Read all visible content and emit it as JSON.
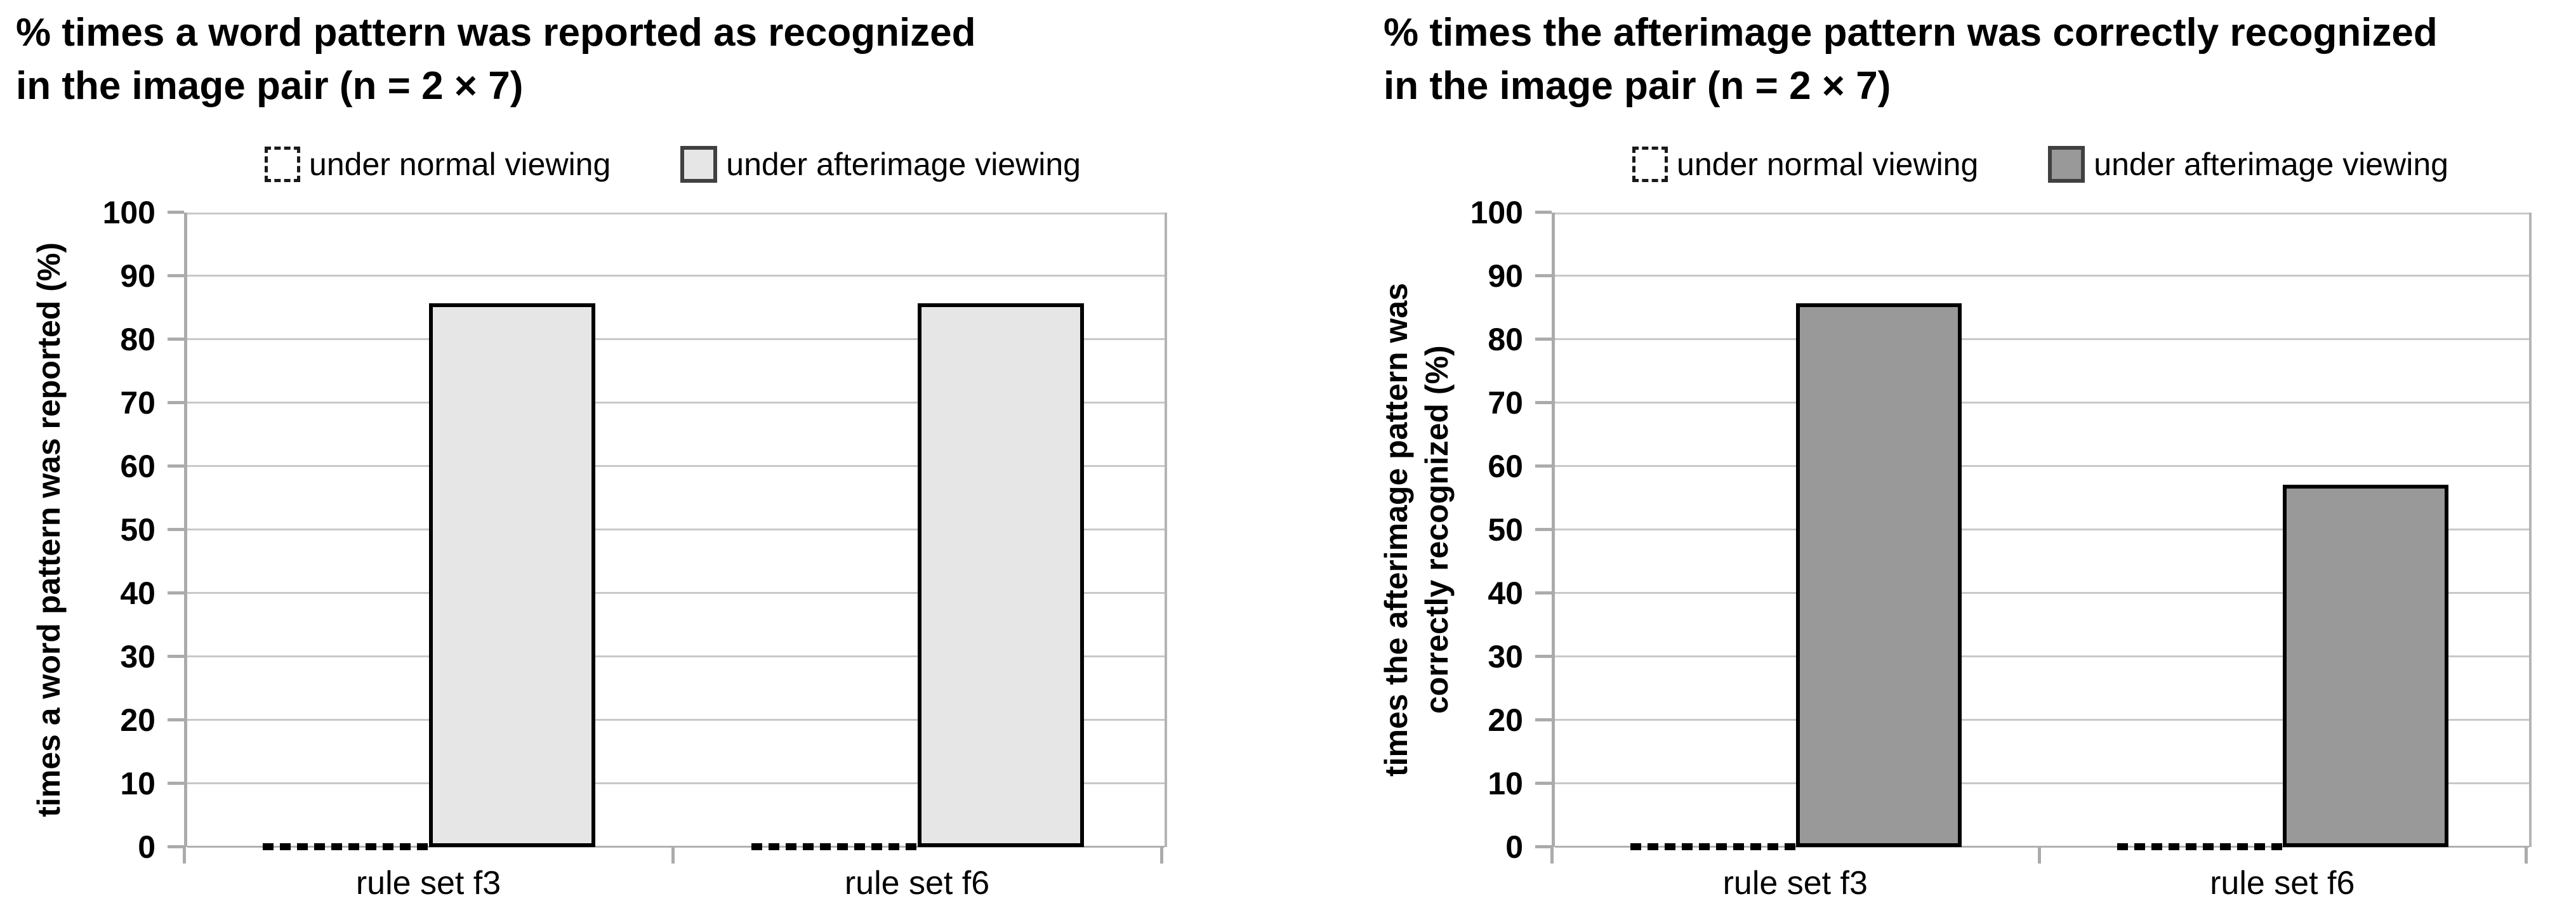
{
  "page": {
    "background": "#ffffff"
  },
  "colors": {
    "gridline": "#c8c8c8",
    "axis": "#ababab",
    "bar_border": "#000000",
    "legend_swatch_border": "#404040",
    "text": "#000000",
    "left_bar_fill": "#e6e6e6",
    "right_bar_fill": "#999999"
  },
  "chart_data": [
    {
      "type": "bar",
      "title": "% times a word pattern was reported as recognized\nin the image pair (n = 2 × 7)",
      "ylabel": "times a word pattern was reported (%)",
      "xlabel": "",
      "categories": [
        "rule set f3",
        "rule set f6"
      ],
      "series": [
        {
          "name": "under normal viewing",
          "values": [
            0,
            0
          ],
          "fill": "#ffffff",
          "style": "dashed-outline"
        },
        {
          "name": "under afterimage viewing",
          "values": [
            85.7,
            85.7
          ],
          "fill": "#e6e6e6",
          "style": "solid"
        }
      ],
      "ylim": [
        0,
        100
      ],
      "yticks": [
        0,
        10,
        20,
        30,
        40,
        50,
        60,
        70,
        80,
        90,
        100
      ],
      "grid": true,
      "legend_position": "top-center"
    },
    {
      "type": "bar",
      "title": "% times the afterimage pattern was correctly recognized\nin the image pair (n = 2 × 7)",
      "ylabel": "times the afterimage pattern was\ncorrectly recognized (%)",
      "xlabel": "",
      "categories": [
        "rule set f3",
        "rule set f6"
      ],
      "series": [
        {
          "name": "under normal viewing",
          "values": [
            0,
            0
          ],
          "fill": "#ffffff",
          "style": "dashed-outline"
        },
        {
          "name": "under afterimage viewing",
          "values": [
            85.7,
            57.1
          ],
          "fill": "#999999",
          "style": "solid"
        }
      ],
      "ylim": [
        0,
        100
      ],
      "yticks": [
        0,
        10,
        20,
        30,
        40,
        50,
        60,
        70,
        80,
        90,
        100
      ],
      "grid": true,
      "legend_position": "top-center"
    }
  ]
}
